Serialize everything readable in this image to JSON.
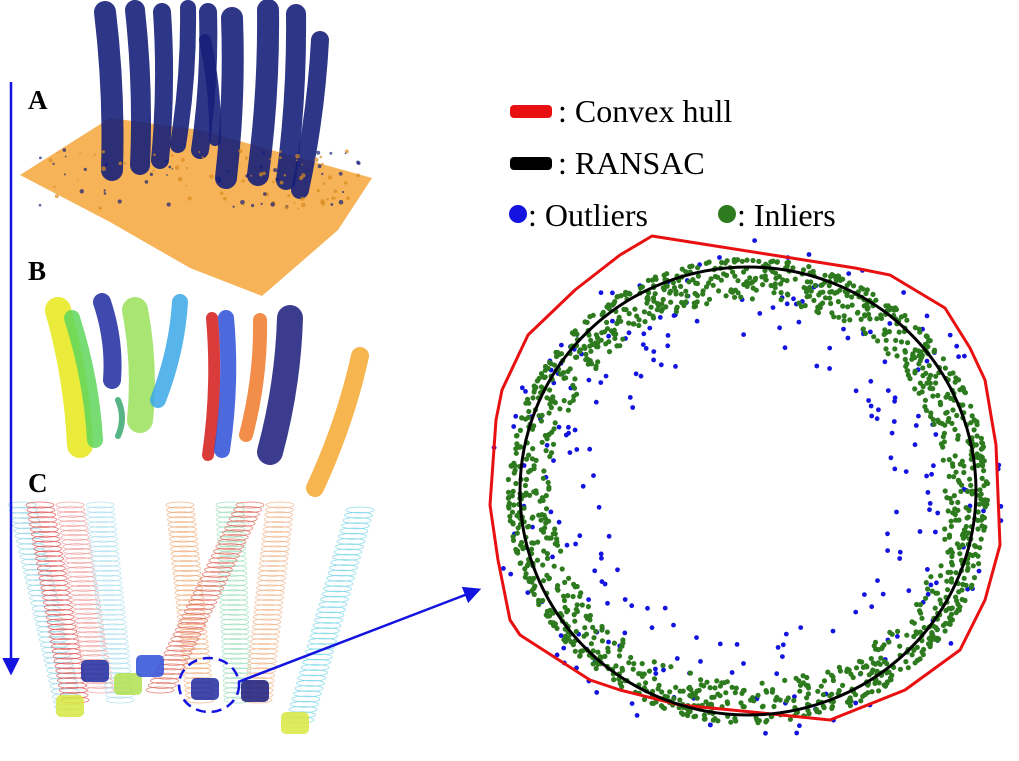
{
  "panels": {
    "a": {
      "letter": "A"
    },
    "b": {
      "letter": "B"
    },
    "c": {
      "letter": "C"
    }
  },
  "legend": {
    "convex_hull": {
      "label": ": Convex hull",
      "color": "#e81010"
    },
    "ransac": {
      "label": ": RANSAC",
      "color": "#000000"
    },
    "outliers": {
      "label": ": Outliers",
      "color": "#1414e0"
    },
    "inliers": {
      "label": ": Inliers",
      "color": "#2e7a1e"
    }
  },
  "colors": {
    "stem_blue": "#16207a",
    "ground_orange": "#f5a63a",
    "arrow_blue": "#1414e0"
  },
  "segment_palette": [
    "#e8e81a",
    "#5fd65a",
    "#1f2aa0",
    "#9ae05a",
    "#3aa8e8",
    "#d41a1a",
    "#2e4fd8",
    "#f07a2a",
    "#1a1a7a",
    "#f5a830"
  ]
}
